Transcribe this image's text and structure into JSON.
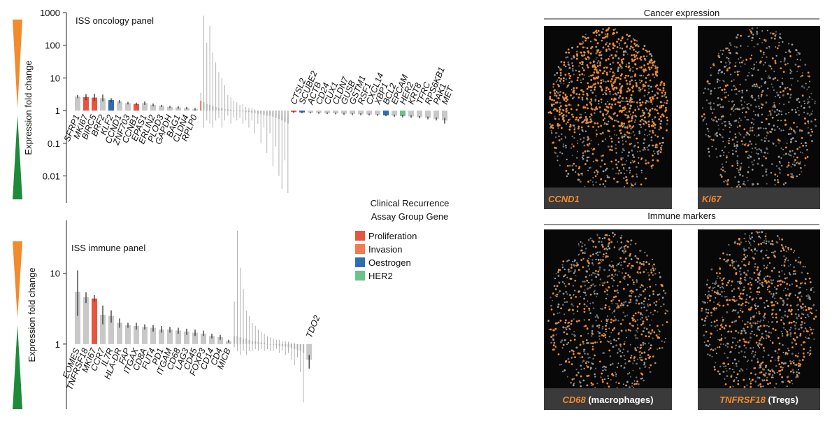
{
  "chart_data": [
    {
      "type": "bar",
      "log": true,
      "title": "ISS oncology panel",
      "ylabel": "Expression fold change",
      "ylim": [
        0.0015,
        1000
      ],
      "yticks": [
        0.01,
        0.1,
        1,
        10,
        100,
        1000
      ],
      "categories": [
        "SFRP1",
        "MKI67",
        "BIRC5",
        "BRF2",
        "KLF2",
        "CCND1",
        "ZNF703",
        "CCNB1",
        "EPAS1",
        "ERLIN2",
        "PLOD3",
        "GAPDH",
        "BAG1",
        "CLDN4",
        "RPLP0",
        null,
        null,
        null,
        null,
        null,
        null,
        null,
        null,
        null,
        null,
        null,
        null,
        null,
        null,
        null,
        null,
        null,
        null,
        null,
        null,
        null,
        null,
        null,
        null,
        null,
        null,
        null,
        null,
        null,
        null,
        "CTSL2",
        "SCUBE2",
        "ACTB",
        "CD24",
        "CUX1",
        "CLDN7",
        "GUSB",
        "GSTM1",
        "RSF1",
        "CXCL14",
        "XBP1",
        "BCL2",
        "EPCAM",
        "HER2",
        "KRT8",
        "TFRC",
        "RPS6KB1",
        "PAK1",
        "MET"
      ],
      "values": [
        2.7,
        2.6,
        2.5,
        2.4,
        2.1,
        1.9,
        1.7,
        1.6,
        1.7,
        1.5,
        1.4,
        1.3,
        1.25,
        1.2,
        1.1,
        2.0,
        1.8,
        1.6,
        1.5,
        1.4,
        1.3,
        1.2,
        1.2,
        1.1,
        1.1,
        1.05,
        1.0,
        1.0,
        0.95,
        0.95,
        0.9,
        0.9,
        0.85,
        0.85,
        0.8,
        0.8,
        0.75,
        0.7,
        0.7,
        0.65,
        0.6,
        0.55,
        0.5,
        0.45,
        0.4,
        0.9,
        0.88,
        0.86,
        0.85,
        0.83,
        0.82,
        0.8,
        0.78,
        0.77,
        0.76,
        0.74,
        0.72,
        0.7,
        0.68,
        0.66,
        0.63,
        0.6,
        0.56,
        0.5
      ],
      "err_low": [
        2.4,
        2.1,
        2.0,
        1.9,
        1.8,
        1.7,
        1.55,
        1.45,
        1.5,
        1.35,
        1.3,
        1.2,
        1.15,
        1.1,
        1.0,
        1.2,
        0.3,
        0.5,
        0.4,
        0.3,
        0.5,
        0.6,
        0.3,
        0.5,
        0.7,
        0.4,
        0.6,
        0.5,
        0.6,
        0.4,
        0.5,
        0.3,
        0.5,
        0.2,
        0.4,
        0.1,
        0.3,
        0.05,
        0.2,
        0.02,
        0.08,
        0.01,
        0.004,
        0.03,
        0.003,
        0.85,
        0.83,
        0.82,
        0.8,
        0.78,
        0.77,
        0.75,
        0.73,
        0.72,
        0.71,
        0.69,
        0.67,
        0.64,
        0.62,
        0.6,
        0.58,
        0.54,
        0.5,
        0.4
      ],
      "err_high": [
        3.0,
        3.2,
        3.3,
        3.1,
        2.4,
        2.1,
        1.85,
        1.75,
        1.9,
        1.65,
        1.5,
        1.4,
        1.35,
        1.3,
        1.2,
        3.5,
        800,
        120,
        400,
        60,
        30,
        15,
        10,
        6,
        3,
        2.5,
        2,
        1.8,
        1.5,
        1.6,
        1.3,
        1.2,
        1.2,
        1.1,
        1.0,
        1.0,
        0.95,
        0.9,
        0.9,
        0.85,
        0.8,
        0.75,
        0.7,
        0.65,
        0.6,
        0.95,
        0.93,
        0.9,
        0.9,
        0.88,
        0.87,
        0.85,
        0.83,
        0.82,
        0.81,
        0.79,
        0.77,
        0.76,
        0.74,
        0.72,
        0.68,
        0.66,
        0.62,
        0.6
      ],
      "colors": [
        "#c8c8c8",
        "#e8553f",
        "#e8553f",
        "#c8c8c8",
        "#2f6db3",
        "#c8c8c8",
        "#c8c8c8",
        "#e8553f",
        "#c8c8c8",
        "#c8c8c8",
        "#c8c8c8",
        "#c8c8c8",
        "#c8c8c8",
        "#c8c8c8",
        "#c8c8c8",
        "#f47a50",
        "#bdbdbd",
        "#bdbdbd",
        "#bdbdbd",
        "#bdbdbd",
        "#bdbdbd",
        "#bdbdbd",
        "#bdbdbd",
        "#bdbdbd",
        "#bdbdbd",
        "#f47a50",
        "#bdbdbd",
        "#bdbdbd",
        "#bdbdbd",
        "#bdbdbd",
        "#bdbdbd",
        "#bdbdbd",
        "#bdbdbd",
        "#bdbdbd",
        "#bdbdbd",
        "#bdbdbd",
        "#bdbdbd",
        "#bdbdbd",
        "#bdbdbd",
        "#bdbdbd",
        "#bdbdbd",
        "#bdbdbd",
        "#bdbdbd",
        "#bdbdbd",
        "#bdbdbd",
        "#e8553f",
        "#2f6db3",
        "#c8c8c8",
        "#c8c8c8",
        "#c8c8c8",
        "#c8c8c8",
        "#c8c8c8",
        "#c8c8c8",
        "#c8c8c8",
        "#c8c8c8",
        "#c8c8c8",
        "#2f6db3",
        "#c8c8c8",
        "#6cc28a",
        "#c8c8c8",
        "#c8c8c8",
        "#c8c8c8",
        "#c8c8c8",
        "#c8c8c8"
      ]
    },
    {
      "type": "bar",
      "log": true,
      "title": "ISS immune panel",
      "ylabel": "Expression fold change",
      "ylim": [
        0.12,
        56
      ],
      "yticks": [
        1,
        10
      ],
      "categories": [
        "EOMES",
        "TNFRSF18",
        "MKI67",
        "CCR7",
        "IL7R",
        "HLA-DR",
        "FAP",
        "ITGAX",
        "CD8A",
        "FUT4",
        "PD1",
        "ITGAM",
        "CD68",
        "LAG3",
        "CD45",
        "FOXP3",
        "CD14",
        "CD4",
        "MICB",
        null,
        null,
        null,
        null,
        null,
        null,
        null,
        null,
        null,
        null,
        null,
        null,
        null,
        null,
        null,
        null,
        null,
        null,
        null,
        null,
        null,
        null,
        null,
        null,
        "TDO2"
      ],
      "values": [
        5.5,
        4.6,
        4.4,
        2.6,
        2.5,
        2.0,
        1.85,
        1.8,
        1.75,
        1.7,
        1.6,
        1.6,
        1.55,
        1.5,
        1.45,
        1.4,
        1.3,
        1.25,
        1.1,
        1.3,
        1.3,
        1.25,
        1.2,
        1.2,
        1.15,
        1.1,
        1.1,
        1.08,
        1.05,
        1.05,
        1.0,
        1.0,
        0.98,
        0.97,
        0.95,
        0.93,
        0.92,
        0.9,
        0.88,
        0.85,
        0.82,
        0.8,
        0.75,
        0.6
      ],
      "err_low": [
        2.5,
        3.8,
        4.0,
        1.9,
        2.0,
        1.7,
        1.7,
        1.6,
        1.6,
        1.5,
        1.45,
        1.45,
        1.4,
        1.35,
        1.3,
        1.3,
        1.2,
        1.15,
        1.05,
        0.9,
        0.8,
        0.7,
        0.8,
        0.7,
        0.8,
        0.8,
        0.85,
        0.8,
        0.85,
        0.8,
        0.85,
        0.8,
        0.8,
        0.85,
        0.75,
        0.8,
        0.7,
        0.75,
        0.6,
        0.5,
        0.65,
        0.4,
        0.15,
        0.45
      ],
      "err_high": [
        11,
        5.4,
        4.9,
        3.5,
        3.0,
        2.3,
        2.0,
        2.0,
        1.9,
        1.85,
        1.8,
        1.75,
        1.7,
        1.65,
        1.6,
        1.55,
        1.4,
        1.35,
        1.15,
        4,
        40,
        12,
        6,
        3,
        2.5,
        2,
        1.8,
        1.6,
        1.5,
        1.4,
        1.3,
        1.25,
        1.2,
        1.15,
        1.15,
        1.1,
        1.1,
        1.08,
        1.05,
        1.05,
        1.0,
        1.0,
        0.98,
        0.7
      ],
      "colors": [
        "#c8c8c8",
        "#c8c8c8",
        "#e8553f",
        "#c8c8c8",
        "#c8c8c8",
        "#c8c8c8",
        "#c8c8c8",
        "#c8c8c8",
        "#c8c8c8",
        "#c8c8c8",
        "#c8c8c8",
        "#c8c8c8",
        "#c8c8c8",
        "#c8c8c8",
        "#c8c8c8",
        "#c8c8c8",
        "#c8c8c8",
        "#c8c8c8",
        "#c8c8c8",
        "#bdbdbd",
        "#bdbdbd",
        "#bdbdbd",
        "#bdbdbd",
        "#bdbdbd",
        "#bdbdbd",
        "#bdbdbd",
        "#bdbdbd",
        "#bdbdbd",
        "#bdbdbd",
        "#bdbdbd",
        "#bdbdbd",
        "#bdbdbd",
        "#bdbdbd",
        "#bdbdbd",
        "#bdbdbd",
        "#bdbdbd",
        "#bdbdbd",
        "#bdbdbd",
        "#bdbdbd",
        "#bdbdbd",
        "#bdbdbd",
        "#bdbdbd",
        "#bdbdbd",
        "#c8c8c8"
      ]
    }
  ],
  "legend": {
    "title": [
      "Clinical Recurrence",
      "Assay Group Gene"
    ],
    "entries": [
      {
        "name": "Proliferation",
        "color": "#e8553f"
      },
      {
        "name": "Invasion",
        "color": "#f47a50"
      },
      {
        "name": "Oestrogen",
        "color": "#2f6db3"
      },
      {
        "name": "HER2",
        "color": "#6cc28a"
      }
    ]
  },
  "images": [
    {
      "title": "Cancer expression",
      "panels": [
        {
          "gene": "CCND1"
        },
        {
          "gene": "Ki67"
        }
      ]
    },
    {
      "title": "Immune markers",
      "panels": [
        {
          "gene": "CD68",
          "note": "(macrophages)"
        },
        {
          "gene": "TNFRSF18",
          "note": "(Tregs)"
        }
      ]
    }
  ]
}
